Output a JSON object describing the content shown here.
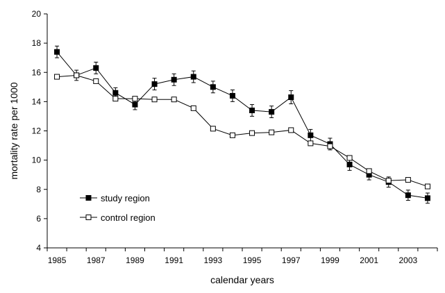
{
  "chart_data": {
    "type": "line",
    "xlabel": "calendar years",
    "ylabel": "mortality rate per 1000",
    "ylim": [
      4,
      20
    ],
    "xlim": [
      1984.5,
      2004.5
    ],
    "y_ticks": [
      4,
      6,
      8,
      10,
      12,
      14,
      16,
      18,
      20
    ],
    "x_ticks": [
      1985,
      1987,
      1989,
      1991,
      1993,
      1995,
      1997,
      1999,
      2001,
      2003
    ],
    "x_tick_labels": [
      "1985",
      "1987",
      "1989",
      "1991",
      "1993",
      "1995",
      "1997",
      "1999",
      "2001",
      "2003"
    ],
    "y_tick_labels": [
      "4",
      "6",
      "8",
      "10",
      "12",
      "14",
      "16",
      "18",
      "20"
    ],
    "grid": false,
    "legend_position": "bottom-left",
    "x": [
      1985,
      1986,
      1987,
      1988,
      1989,
      1990,
      1991,
      1992,
      1993,
      1994,
      1995,
      1996,
      1997,
      1998,
      1999,
      2000,
      2001,
      2002,
      2003,
      2004
    ],
    "series": [
      {
        "name": "study region",
        "marker": "filled-square",
        "color": "#000000",
        "values": [
          17.4,
          15.8,
          16.3,
          14.6,
          13.8,
          15.2,
          15.5,
          15.7,
          15.0,
          14.4,
          13.4,
          13.3,
          14.3,
          11.7,
          11.1,
          9.7,
          9.0,
          8.5,
          7.6,
          7.4
        ],
        "errors": [
          0.4,
          0.35,
          0.4,
          0.35,
          0.35,
          0.4,
          0.4,
          0.4,
          0.4,
          0.4,
          0.4,
          0.4,
          0.45,
          0.4,
          0.4,
          0.4,
          0.35,
          0.35,
          0.35,
          0.35
        ]
      },
      {
        "name": "control region",
        "marker": "open-square",
        "color": "#000000",
        "values": [
          15.7,
          15.8,
          15.4,
          14.2,
          14.2,
          14.15,
          14.15,
          13.55,
          12.15,
          11.7,
          11.85,
          11.9,
          12.05,
          11.15,
          10.95,
          10.15,
          9.25,
          8.6,
          8.65,
          8.2
        ],
        "errors": [
          0.12,
          0.12,
          0.12,
          0.12,
          0.12,
          0.12,
          0.12,
          0.12,
          0.12,
          0.12,
          0.12,
          0.12,
          0.12,
          0.12,
          0.12,
          0.12,
          0.12,
          0.12,
          0.12,
          0.12
        ]
      }
    ]
  }
}
